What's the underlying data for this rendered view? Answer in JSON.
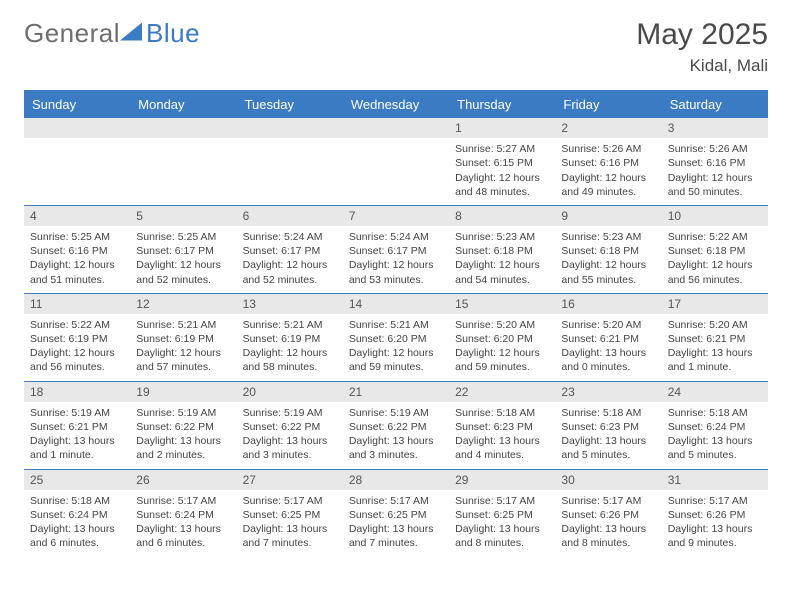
{
  "logo": {
    "text1": "General",
    "text2": "Blue"
  },
  "title": "May 2025",
  "location": "Kidal, Mali",
  "colors": {
    "accent": "#3b7bc4",
    "daynum_bg": "#e8e8e8",
    "text": "#444444"
  },
  "weekdays": [
    "Sunday",
    "Monday",
    "Tuesday",
    "Wednesday",
    "Thursday",
    "Friday",
    "Saturday"
  ],
  "weeks": [
    [
      {
        "day": "",
        "lines": []
      },
      {
        "day": "",
        "lines": []
      },
      {
        "day": "",
        "lines": []
      },
      {
        "day": "",
        "lines": []
      },
      {
        "day": "1",
        "lines": [
          "Sunrise: 5:27 AM",
          "Sunset: 6:15 PM",
          "Daylight: 12 hours and 48 minutes."
        ]
      },
      {
        "day": "2",
        "lines": [
          "Sunrise: 5:26 AM",
          "Sunset: 6:16 PM",
          "Daylight: 12 hours and 49 minutes."
        ]
      },
      {
        "day": "3",
        "lines": [
          "Sunrise: 5:26 AM",
          "Sunset: 6:16 PM",
          "Daylight: 12 hours and 50 minutes."
        ]
      }
    ],
    [
      {
        "day": "4",
        "lines": [
          "Sunrise: 5:25 AM",
          "Sunset: 6:16 PM",
          "Daylight: 12 hours and 51 minutes."
        ]
      },
      {
        "day": "5",
        "lines": [
          "Sunrise: 5:25 AM",
          "Sunset: 6:17 PM",
          "Daylight: 12 hours and 52 minutes."
        ]
      },
      {
        "day": "6",
        "lines": [
          "Sunrise: 5:24 AM",
          "Sunset: 6:17 PM",
          "Daylight: 12 hours and 52 minutes."
        ]
      },
      {
        "day": "7",
        "lines": [
          "Sunrise: 5:24 AM",
          "Sunset: 6:17 PM",
          "Daylight: 12 hours and 53 minutes."
        ]
      },
      {
        "day": "8",
        "lines": [
          "Sunrise: 5:23 AM",
          "Sunset: 6:18 PM",
          "Daylight: 12 hours and 54 minutes."
        ]
      },
      {
        "day": "9",
        "lines": [
          "Sunrise: 5:23 AM",
          "Sunset: 6:18 PM",
          "Daylight: 12 hours and 55 minutes."
        ]
      },
      {
        "day": "10",
        "lines": [
          "Sunrise: 5:22 AM",
          "Sunset: 6:18 PM",
          "Daylight: 12 hours and 56 minutes."
        ]
      }
    ],
    [
      {
        "day": "11",
        "lines": [
          "Sunrise: 5:22 AM",
          "Sunset: 6:19 PM",
          "Daylight: 12 hours and 56 minutes."
        ]
      },
      {
        "day": "12",
        "lines": [
          "Sunrise: 5:21 AM",
          "Sunset: 6:19 PM",
          "Daylight: 12 hours and 57 minutes."
        ]
      },
      {
        "day": "13",
        "lines": [
          "Sunrise: 5:21 AM",
          "Sunset: 6:19 PM",
          "Daylight: 12 hours and 58 minutes."
        ]
      },
      {
        "day": "14",
        "lines": [
          "Sunrise: 5:21 AM",
          "Sunset: 6:20 PM",
          "Daylight: 12 hours and 59 minutes."
        ]
      },
      {
        "day": "15",
        "lines": [
          "Sunrise: 5:20 AM",
          "Sunset: 6:20 PM",
          "Daylight: 12 hours and 59 minutes."
        ]
      },
      {
        "day": "16",
        "lines": [
          "Sunrise: 5:20 AM",
          "Sunset: 6:21 PM",
          "Daylight: 13 hours and 0 minutes."
        ]
      },
      {
        "day": "17",
        "lines": [
          "Sunrise: 5:20 AM",
          "Sunset: 6:21 PM",
          "Daylight: 13 hours and 1 minute."
        ]
      }
    ],
    [
      {
        "day": "18",
        "lines": [
          "Sunrise: 5:19 AM",
          "Sunset: 6:21 PM",
          "Daylight: 13 hours and 1 minute."
        ]
      },
      {
        "day": "19",
        "lines": [
          "Sunrise: 5:19 AM",
          "Sunset: 6:22 PM",
          "Daylight: 13 hours and 2 minutes."
        ]
      },
      {
        "day": "20",
        "lines": [
          "Sunrise: 5:19 AM",
          "Sunset: 6:22 PM",
          "Daylight: 13 hours and 3 minutes."
        ]
      },
      {
        "day": "21",
        "lines": [
          "Sunrise: 5:19 AM",
          "Sunset: 6:22 PM",
          "Daylight: 13 hours and 3 minutes."
        ]
      },
      {
        "day": "22",
        "lines": [
          "Sunrise: 5:18 AM",
          "Sunset: 6:23 PM",
          "Daylight: 13 hours and 4 minutes."
        ]
      },
      {
        "day": "23",
        "lines": [
          "Sunrise: 5:18 AM",
          "Sunset: 6:23 PM",
          "Daylight: 13 hours and 5 minutes."
        ]
      },
      {
        "day": "24",
        "lines": [
          "Sunrise: 5:18 AM",
          "Sunset: 6:24 PM",
          "Daylight: 13 hours and 5 minutes."
        ]
      }
    ],
    [
      {
        "day": "25",
        "lines": [
          "Sunrise: 5:18 AM",
          "Sunset: 6:24 PM",
          "Daylight: 13 hours and 6 minutes."
        ]
      },
      {
        "day": "26",
        "lines": [
          "Sunrise: 5:17 AM",
          "Sunset: 6:24 PM",
          "Daylight: 13 hours and 6 minutes."
        ]
      },
      {
        "day": "27",
        "lines": [
          "Sunrise: 5:17 AM",
          "Sunset: 6:25 PM",
          "Daylight: 13 hours and 7 minutes."
        ]
      },
      {
        "day": "28",
        "lines": [
          "Sunrise: 5:17 AM",
          "Sunset: 6:25 PM",
          "Daylight: 13 hours and 7 minutes."
        ]
      },
      {
        "day": "29",
        "lines": [
          "Sunrise: 5:17 AM",
          "Sunset: 6:25 PM",
          "Daylight: 13 hours and 8 minutes."
        ]
      },
      {
        "day": "30",
        "lines": [
          "Sunrise: 5:17 AM",
          "Sunset: 6:26 PM",
          "Daylight: 13 hours and 8 minutes."
        ]
      },
      {
        "day": "31",
        "lines": [
          "Sunrise: 5:17 AM",
          "Sunset: 6:26 PM",
          "Daylight: 13 hours and 9 minutes."
        ]
      }
    ]
  ]
}
